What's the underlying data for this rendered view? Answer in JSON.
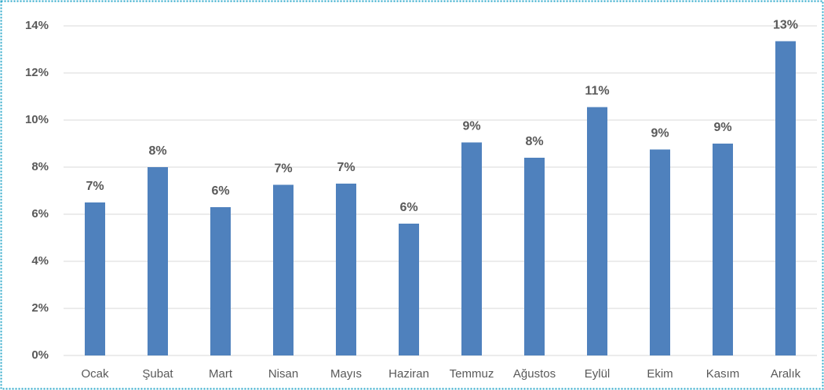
{
  "chart_data": {
    "type": "bar",
    "categories": [
      "Ocak",
      "Şubat",
      "Mart",
      "Nisan",
      "Mayıs",
      "Haziran",
      "Temmuz",
      "Ağustos",
      "Eylül",
      "Ekim",
      "Kasım",
      "Aralık"
    ],
    "values": [
      6.5,
      8.0,
      6.3,
      7.25,
      7.3,
      5.6,
      9.05,
      8.4,
      10.55,
      8.75,
      9.0,
      13.35
    ],
    "value_labels": [
      "7%",
      "8%",
      "6%",
      "7%",
      "7%",
      "6%",
      "9%",
      "8%",
      "11%",
      "9%",
      "9%",
      "13%"
    ],
    "color": "#4f81bd",
    "ylim": [
      0,
      14
    ],
    "yticks": [
      {
        "value": 0,
        "label": "0%"
      },
      {
        "value": 2,
        "label": "2%"
      },
      {
        "value": 4,
        "label": "4%"
      },
      {
        "value": 6,
        "label": "6%"
      },
      {
        "value": 8,
        "label": "8%"
      },
      {
        "value": 10,
        "label": "10%"
      },
      {
        "value": 12,
        "label": "12%"
      },
      {
        "value": 14,
        "label": "14%"
      }
    ],
    "grid": true
  }
}
